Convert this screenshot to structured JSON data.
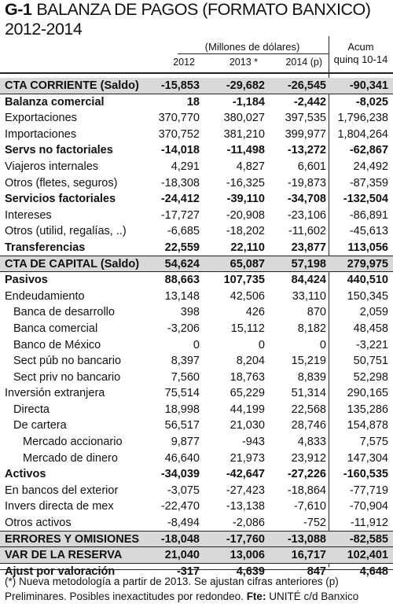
{
  "title": {
    "code": "G-1",
    "text": "BALANZA DE PAGOS (FORMATO BANXICO)",
    "years": "2012-2014"
  },
  "header": {
    "units": "(Millones de dólares)",
    "acum_line1": "Acum",
    "acum_line2": "quinq 10-14",
    "col_2012": "2012",
    "col_2013": "2013 *",
    "col_2014": "2014 (p)"
  },
  "rows": [
    {
      "label": "CTA CORRIENTE (Saldo)",
      "v2012": "-15,853",
      "v2013": "-29,682",
      "v2014": "-26,545",
      "acum": "-90,341"
    },
    {
      "label": "Balanza comercial",
      "v2012": "18",
      "v2013": "-1,184",
      "v2014": "-2,442",
      "acum": "-8,025"
    },
    {
      "label": "Exportaciones",
      "v2012": "370,770",
      "v2013": "380,027",
      "v2014": "397,535",
      "acum": "1,796,238"
    },
    {
      "label": "Importaciones",
      "v2012": "370,752",
      "v2013": "381,210",
      "v2014": "399,977",
      "acum": "1,804,264"
    },
    {
      "label": "Servs no factoriales",
      "v2012": "-14,018",
      "v2013": "-11,498",
      "v2014": "-13,272",
      "acum": "-62,867"
    },
    {
      "label": "Viajeros internales",
      "v2012": "4,291",
      "v2013": "4,827",
      "v2014": "6,601",
      "acum": "24,492"
    },
    {
      "label": "Otros (fletes, seguros)",
      "v2012": "-18,308",
      "v2013": "-16,325",
      "v2014": "-19,873",
      "acum": "-87,359"
    },
    {
      "label": "Servicios factoriales",
      "v2012": "-24,412",
      "v2013": "-39,110",
      "v2014": "-34,708",
      "acum": "-132,504"
    },
    {
      "label": "Intereses",
      "v2012": "-17,727",
      "v2013": "-20,908",
      "v2014": "-23,106",
      "acum": "-86,891"
    },
    {
      "label": "Otros (utilid, regalías, ..)",
      "v2012": "-6,685",
      "v2013": "-18,202",
      "v2014": "-11,602",
      "acum": "-45,613"
    },
    {
      "label": "Transferencias",
      "v2012": "22,559",
      "v2013": "22,110",
      "v2014": "23,877",
      "acum": "113,056"
    },
    {
      "label": "CTA DE CAPITAL (Saldo)",
      "v2012": "54,624",
      "v2013": "65,087",
      "v2014": "57,198",
      "acum": "279,975"
    },
    {
      "label": "Pasivos",
      "v2012": "88,663",
      "v2013": "107,735",
      "v2014": "84,424",
      "acum": "440,510"
    },
    {
      "label": "Endeudamiento",
      "v2012": "13,148",
      "v2013": "42,506",
      "v2014": "33,110",
      "acum": "150,345"
    },
    {
      "label": "Banca de desarrollo",
      "v2012": "398",
      "v2013": "426",
      "v2014": "870",
      "acum": "2,059"
    },
    {
      "label": "Banca comercial",
      "v2012": "-3,206",
      "v2013": "15,112",
      "v2014": "8,182",
      "acum": "48,458"
    },
    {
      "label": "Banco de México",
      "v2012": "0",
      "v2013": "0",
      "v2014": "0",
      "acum": "-3,221"
    },
    {
      "label": "Sect púb no bancario",
      "v2012": "8,397",
      "v2013": "8,204",
      "v2014": "15,219",
      "acum": "50,751"
    },
    {
      "label": "Sect priv no bancario",
      "v2012": "7,560",
      "v2013": "18,763",
      "v2014": "8,839",
      "acum": "52,298"
    },
    {
      "label": "Inversión extranjera",
      "v2012": "75,514",
      "v2013": "65,229",
      "v2014": "51,314",
      "acum": "290,165"
    },
    {
      "label": "Directa",
      "v2012": "18,998",
      "v2013": "44,199",
      "v2014": "22,568",
      "acum": "135,286"
    },
    {
      "label": "De cartera",
      "v2012": "56,517",
      "v2013": "21,030",
      "v2014": "28,746",
      "acum": "154,878"
    },
    {
      "label": "Mercado accionario",
      "v2012": "9,877",
      "v2013": "-943",
      "v2014": "4,833",
      "acum": "7,575"
    },
    {
      "label": "Mercado de dinero",
      "v2012": "46,640",
      "v2013": "21,973",
      "v2014": "23,912",
      "acum": "147,304"
    },
    {
      "label": "Activos",
      "v2012": "-34,039",
      "v2013": "-42,647",
      "v2014": "-27,226",
      "acum": "-160,535"
    },
    {
      "label": "En bancos del exterior",
      "v2012": "-3,075",
      "v2013": "-27,423",
      "v2014": "-18,864",
      "acum": "-77,719"
    },
    {
      "label": "Invers directa de mex",
      "v2012": "-22,470",
      "v2013": "-13,138",
      "v2014": "-7,610",
      "acum": "-70,904"
    },
    {
      "label": "Otros activos",
      "v2012": "-8,494",
      "v2013": "-2,086",
      "v2014": "-752",
      "acum": "-11,912"
    },
    {
      "label": "ERRORES Y OMISIONES",
      "v2012": "-18,048",
      "v2013": "-17,760",
      "v2014": "-13,088",
      "acum": "-82,585"
    },
    {
      "label": "VAR DE LA RESERVA",
      "v2012": "21,040",
      "v2013": "13,006",
      "v2014": "16,717",
      "acum": "102,401"
    },
    {
      "label": "Ajust por valoración",
      "v2012": "-317",
      "v2013": "4,639",
      "v2014": "847",
      "acum": "4,648"
    }
  ],
  "footnote": {
    "text": "(*) Nueva metodología a partir de 2013. Se ajustan cifras anteriores (p) Preliminares. Posibles inexactitudes por redondeo.",
    "source_label": "Fte:",
    "source_text": "UNITÉ c/d Banxico"
  }
}
